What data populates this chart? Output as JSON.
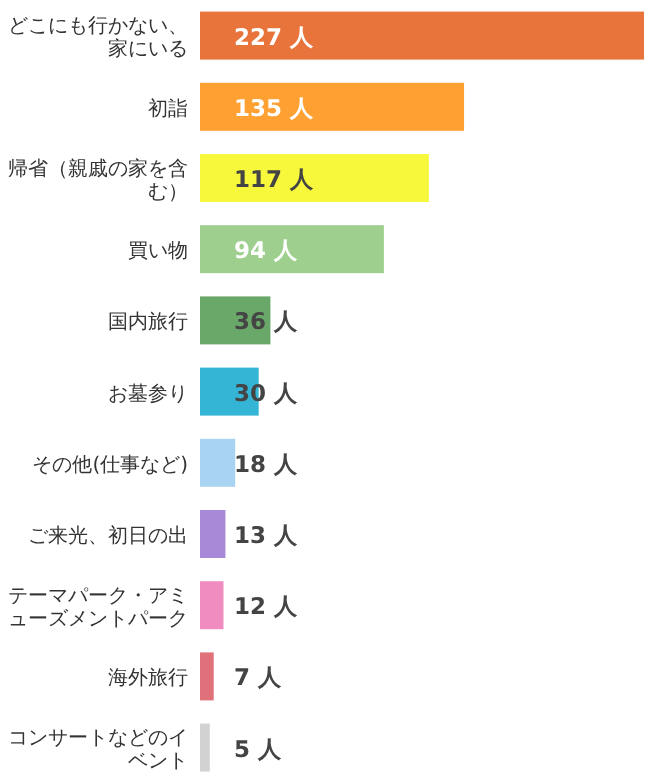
{
  "chart_data": {
    "type": "bar",
    "orientation": "horizontal",
    "categories": [
      "どこにも行かない、家にいる",
      "初詣",
      "帰省（親戚の家を含む）",
      "買い物",
      "国内旅行",
      "お墓参り",
      "その他(仕事など)",
      "ご来光、初日の出",
      "テーマパーク・アミューズメントパーク",
      "海外旅行",
      "コンサートなどのイベント"
    ],
    "values": [
      227,
      135,
      117,
      94,
      36,
      30,
      18,
      13,
      12,
      7,
      5
    ],
    "value_labels": [
      "227 人",
      "135 人",
      "117 人",
      "94 人",
      "36 人",
      "30 人",
      "18 人",
      "13 人",
      "12 人",
      "7 人",
      "5 人"
    ],
    "colors": [
      "#e8743b",
      "#ffa033",
      "#f7f73c",
      "#9ecf8e",
      "#6aa86a",
      "#35b5d5",
      "#a8d3f3",
      "#a889d8",
      "#f08cbf",
      "#e07079",
      "#d2d2d2"
    ]
  }
}
